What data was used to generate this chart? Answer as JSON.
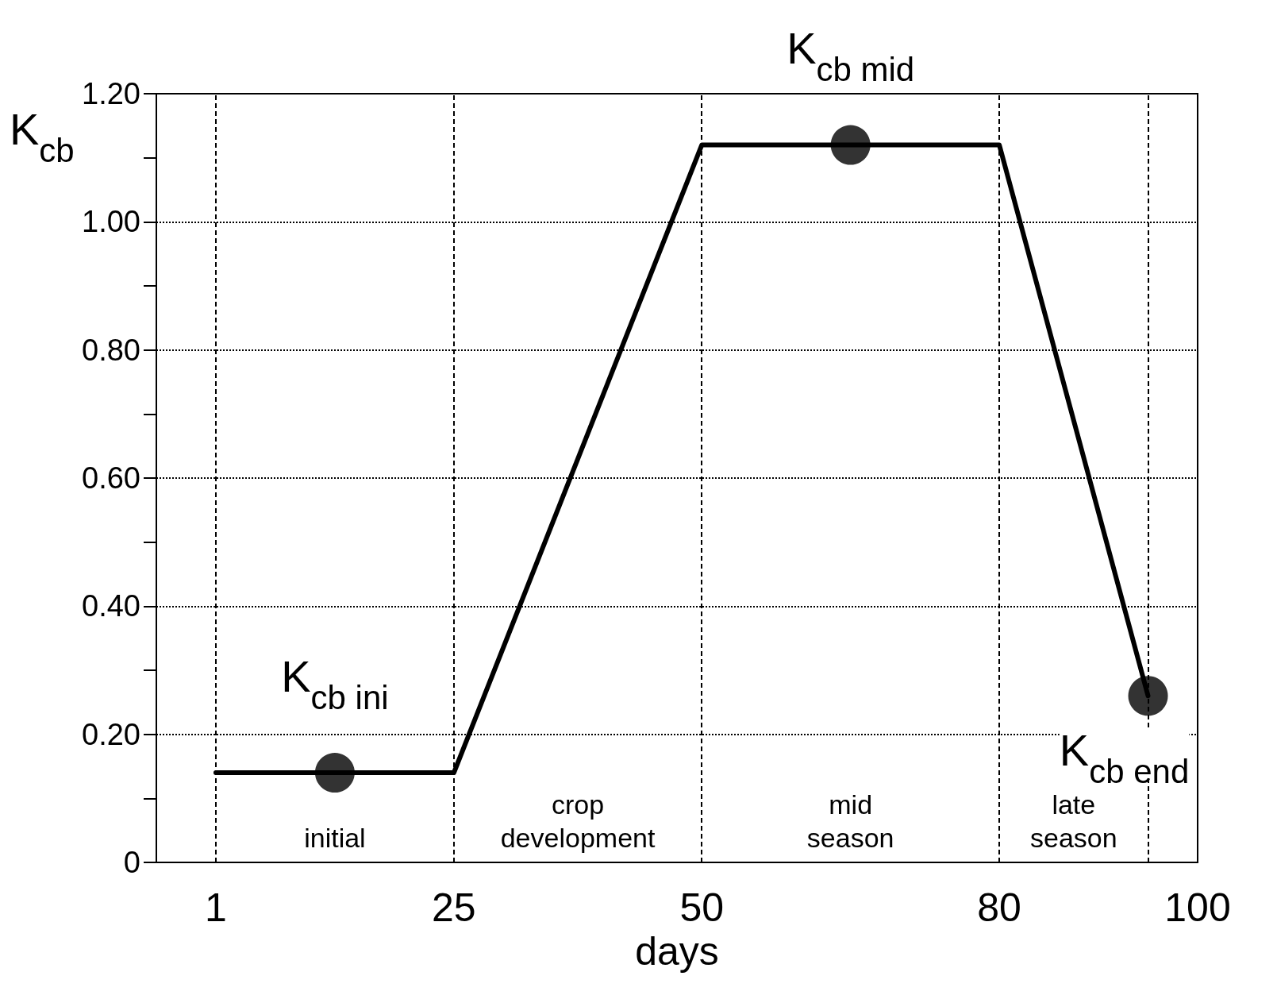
{
  "chart_data": {
    "type": "line",
    "xlabel": "days",
    "ylabel": "K$_{cb}$",
    "series": [
      {
        "color": "#000000",
        "marker": "none",
        "x": [
          1,
          25,
          50,
          80,
          95
        ],
        "values": [
          0.14,
          0.14,
          1.12,
          1.12,
          0.26
        ]
      },
      {
        "type": "scatter",
        "color": "#000000",
        "marker": "circle",
        "x": [
          13,
          65,
          95
        ],
        "values": [
          0.14,
          1.12,
          0.26
        ]
      }
    ],
    "xlim": [
      -5,
      100
    ],
    "xticks": [
      1,
      25,
      50,
      80,
      100
    ],
    "ylim": [
      0,
      1.2
    ],
    "yticks": [
      0,
      {
        "value": 0.1,
        "label": null
      },
      {
        "value": 0.2,
        "label": "0.20"
      },
      {
        "value": 0.3,
        "label": null
      },
      {
        "value": 0.4,
        "label": "0.40"
      },
      {
        "value": 0.5,
        "label": null
      },
      {
        "value": 0.6,
        "label": "0.60"
      },
      {
        "value": 0.7,
        "label": null
      },
      {
        "value": 0.8,
        "label": "0.80"
      },
      {
        "value": 0.9,
        "label": null
      },
      {
        "value": 1,
        "label": "1.00"
      },
      {
        "value": 1.1,
        "label": null
      },
      {
        "value": 1.2,
        "label": "1.20"
      }
    ],
    "grid": "y",
    "ref_lines": [
      {
        "axis": "x",
        "value": 1,
        "line_style": "dashed",
        "color": "#000000"
      },
      {
        "axis": "x",
        "value": 25,
        "line_style": "dashed",
        "color": "#000000"
      },
      {
        "axis": "x",
        "value": 50,
        "line_style": "dashed",
        "color": "#000000"
      },
      {
        "axis": "x",
        "value": 80,
        "line_style": "dashed",
        "color": "#000000"
      },
      {
        "axis": "x",
        "value": 95,
        "line_style": "dashed",
        "color": "#000000"
      }
    ],
    "annotations": [
      "K$_{cb ini}$",
      "K$_{cb mid}$",
      "K$_{cb end}$",
      "initial",
      "crop\ndevelopment",
      "mid\nseason",
      "late\nseason"
    ]
  }
}
